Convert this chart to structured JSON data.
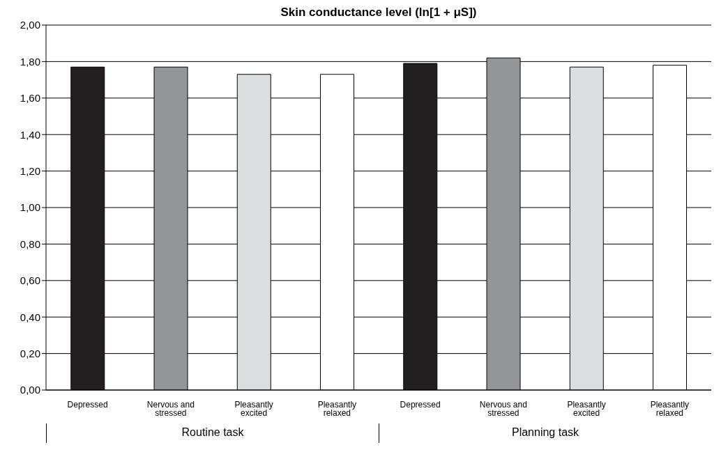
{
  "chart_data": {
    "type": "bar",
    "title": "Skin conductance level (ln[1 + μS])",
    "categories": [
      "Depressed",
      "Nervous and stressed",
      "Pleasantly excited",
      "Pleasantly relaxed",
      "Depressed",
      "Nervous and stressed",
      "Pleasantly excited",
      "Pleasantly relaxed"
    ],
    "values": [
      1.77,
      1.77,
      1.73,
      1.73,
      1.79,
      1.82,
      1.77,
      1.78
    ],
    "colors": [
      "#231f20",
      "#939598",
      "#dcddde",
      "#ffffff",
      "#231f20",
      "#939598",
      "#dcddde",
      "#ffffff"
    ],
    "ylim": [
      0,
      2
    ],
    "yticks": [
      {
        "value": 0,
        "label": "0,00"
      },
      {
        "value": 0.2,
        "label": "0,20"
      },
      {
        "value": 0.4,
        "label": "0,40"
      },
      {
        "value": 0.6,
        "label": "0,60"
      },
      {
        "value": 0.8,
        "label": "0,80"
      },
      {
        "value": 1,
        "label": "1,00"
      },
      {
        "value": 1.2,
        "label": "1,20"
      },
      {
        "value": 1.4,
        "label": "1,40"
      },
      {
        "value": 1.6,
        "label": "1,60"
      },
      {
        "value": 1.8,
        "label": "1,80"
      },
      {
        "value": 2,
        "label": "2,00"
      }
    ],
    "grid": "y",
    "annotations": [
      "Routine task",
      "Planning task"
    ]
  }
}
